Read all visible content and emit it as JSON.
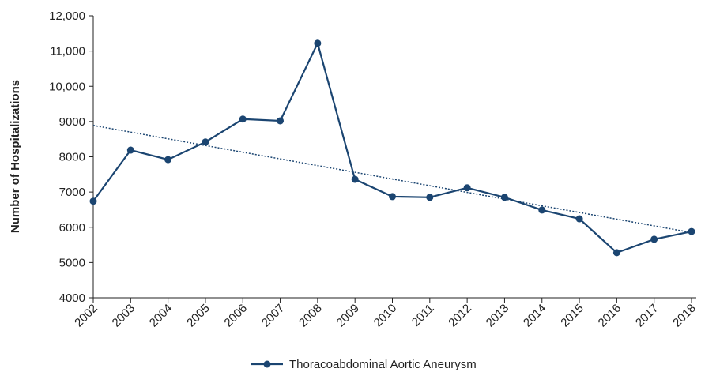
{
  "chart_data": {
    "type": "line",
    "y_label": "Number of Hospitalizations",
    "categories": [
      "2002",
      "2003",
      "2004",
      "2005",
      "2006",
      "2007",
      "2008",
      "2009",
      "2010",
      "2011",
      "2012",
      "2013",
      "2014",
      "2015",
      "2016",
      "2017",
      "2018"
    ],
    "series": [
      {
        "name": "Thoracoabdominal Aortic Aneurysm",
        "color": "#1b4571",
        "values": [
          6740,
          8190,
          7920,
          8420,
          9070,
          9020,
          11220,
          7360,
          6870,
          6850,
          7120,
          6850,
          6490,
          6240,
          5280,
          5660,
          5880
        ]
      }
    ],
    "trendline": {
      "color": "#1b4571",
      "values": [
        8890,
        5850
      ]
    },
    "ylim": [
      4000,
      12000
    ],
    "yticks": [
      4000,
      5000,
      6000,
      7000,
      8000,
      9000,
      {
        "value": 10000,
        "label": "10,000"
      },
      {
        "value": 11000,
        "label": "11,000"
      },
      {
        "value": 12000,
        "label": "12,000"
      }
    ],
    "legend": "bottom"
  }
}
